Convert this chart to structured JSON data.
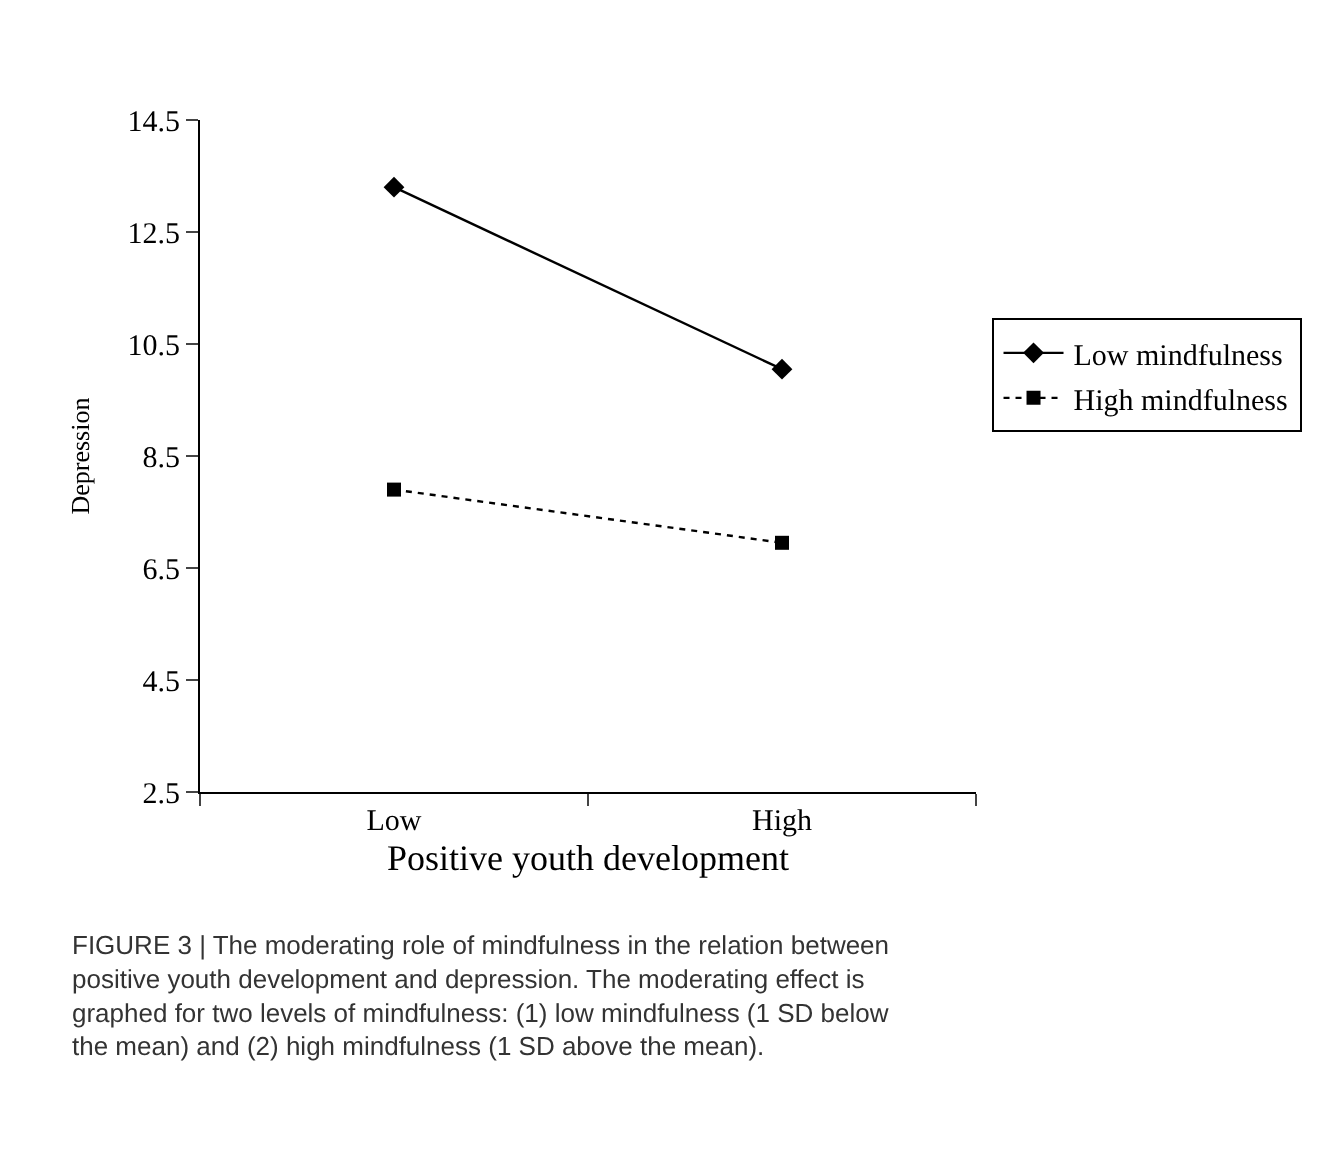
{
  "chart_data": {
    "type": "line",
    "xlabel": "Positive youth development",
    "ylabel": "Depression",
    "categories": [
      "Low",
      "High"
    ],
    "series": [
      {
        "name": "Low mindfulness",
        "color": "#000000",
        "values": [
          13.3,
          10.05
        ],
        "marker": "diamond",
        "line_style": "solid"
      },
      {
        "name": "High mindfulness",
        "color": "#000000",
        "values": [
          7.9,
          6.95
        ],
        "marker": "square",
        "line_style": "dotted"
      }
    ],
    "ylim": [
      2.5,
      14.5
    ],
    "yticks": [
      2.5,
      4.5,
      6.5,
      8.5,
      10.5,
      12.5,
      14.5
    ],
    "legend": "right",
    "annotations": [
      "FIGURE 3 | The moderating role of mindfulness in the relation between positive youth development and depression. The moderating effect is graphed for two levels of mindfulness: (1) low mindfulness (1 SD below the mean) and (2) high mindfulness (1 SD above the mean)."
    ]
  }
}
